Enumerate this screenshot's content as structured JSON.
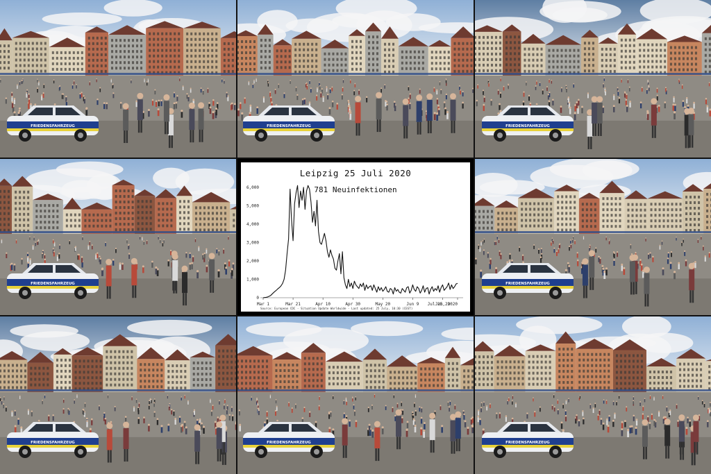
{
  "photos": {
    "count": 8,
    "scene": "market-square-photo",
    "car_text": "FRIEDENSFAHRZEUG"
  },
  "chart": {
    "title": "Leipzig 25 Juli 2020",
    "subtitle": "781 Neuinfektionen",
    "source": "Source: European CDC - Situation Update Worldwide - Last updated: 25 July, 10:30 (CEST)"
  },
  "chart_data": {
    "type": "line",
    "title": "Leipzig 25 Juli 2020",
    "subtitle": "781 Neuinfektionen",
    "xlabel": "",
    "ylabel": "",
    "x_tick_labels": [
      "Mar 1",
      "Mar 21",
      "Apr 10",
      "Apr 30",
      "May 20",
      "Jun 9",
      "Jun 29",
      "Jul 25, 2020"
    ],
    "y_tick_labels": [
      "0",
      "1,000",
      "2,000",
      "3,000",
      "4,000",
      "5,000",
      "6,000"
    ],
    "ylim": [
      0,
      6300
    ],
    "grid": false,
    "series": [
      {
        "name": "",
        "x_start": "2020-03-01",
        "x_end": "2020-07-25",
        "values": [
          0,
          10,
          20,
          40,
          80,
          120,
          200,
          280,
          350,
          420,
          500,
          560,
          650,
          780,
          1000,
          1500,
          2400,
          3200,
          5900,
          4200,
          3100,
          5100,
          5700,
          6100,
          4900,
          5800,
          5300,
          6000,
          4800,
          5800,
          6100,
          5900,
          5200,
          4100,
          4700,
          3900,
          5300,
          3600,
          3000,
          2900,
          3200,
          3500,
          3100,
          2500,
          2200,
          2600,
          2300,
          2100,
          1600,
          1500,
          2000,
          2400,
          1300,
          2500,
          1100,
          700,
          500,
          1000,
          600,
          800,
          500,
          900,
          700,
          600,
          500,
          750,
          600,
          800,
          400,
          700,
          500,
          600,
          650,
          400,
          700,
          500,
          300,
          600,
          400,
          550,
          350,
          450,
          600,
          350,
          300,
          500,
          450,
          200,
          550,
          350,
          450,
          300,
          250,
          500,
          400,
          300,
          550,
          600,
          250,
          400,
          700,
          450,
          350,
          600,
          500,
          250,
          400,
          650,
          300,
          500,
          550,
          200,
          450,
          600,
          350,
          500,
          400,
          650,
          300,
          550,
          700,
          400,
          500,
          600,
          800,
          450,
          700,
          500,
          600,
          750,
          780
        ]
      }
    ]
  }
}
